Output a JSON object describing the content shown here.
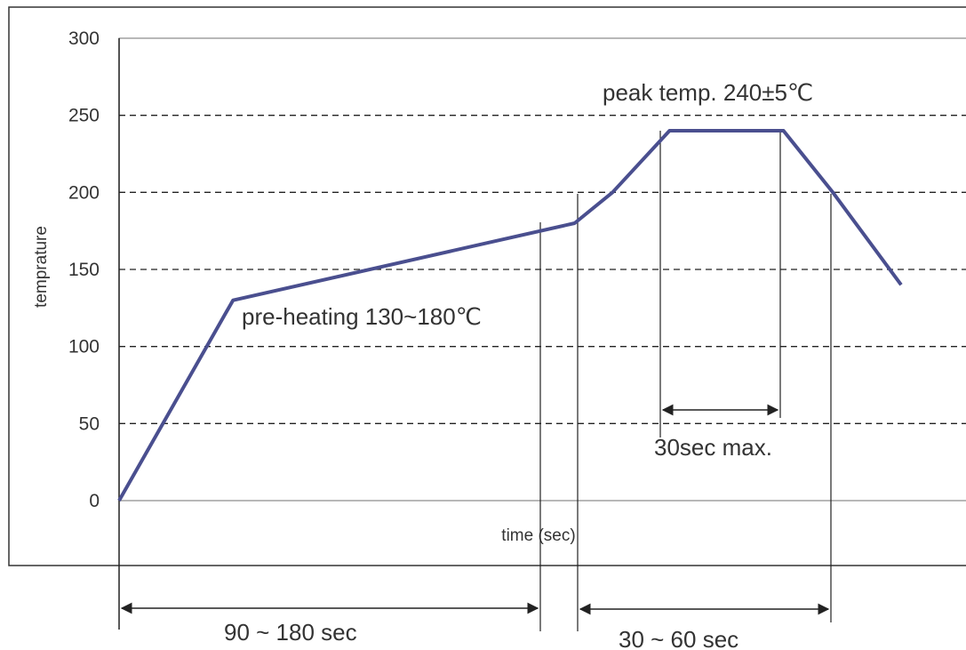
{
  "chart_data": {
    "type": "line",
    "title": "",
    "xlabel": "time (sec)",
    "ylabel": "temprature",
    "ylim": [
      0,
      300
    ],
    "yticks": [
      "0",
      "50",
      "100",
      "150",
      "200",
      "250",
      "300"
    ],
    "grid": "dashed horizontal",
    "series": [
      {
        "points": [
          {
            "x": 0,
            "y": 0
          },
          {
            "x": 30,
            "y": 130
          },
          {
            "x": 120,
            "y": 180
          },
          {
            "x": 130,
            "y": 200
          },
          {
            "x": 145,
            "y": 240
          },
          {
            "x": 175,
            "y": 240
          },
          {
            "x": 188,
            "y": 200
          },
          {
            "x": 206,
            "y": 140
          }
        ]
      }
    ],
    "annotations": {
      "peak": "peak temp. 240±5℃",
      "preheat": "pre-heating 130~180℃",
      "peak_duration": "30sec max.",
      "preheat_duration": "90 ~ 180 sec",
      "above200_duration": "30 ~ 60 sec"
    },
    "colors": {
      "line": "#4a4f8f",
      "text": "#333333",
      "grid": "#222222"
    }
  }
}
